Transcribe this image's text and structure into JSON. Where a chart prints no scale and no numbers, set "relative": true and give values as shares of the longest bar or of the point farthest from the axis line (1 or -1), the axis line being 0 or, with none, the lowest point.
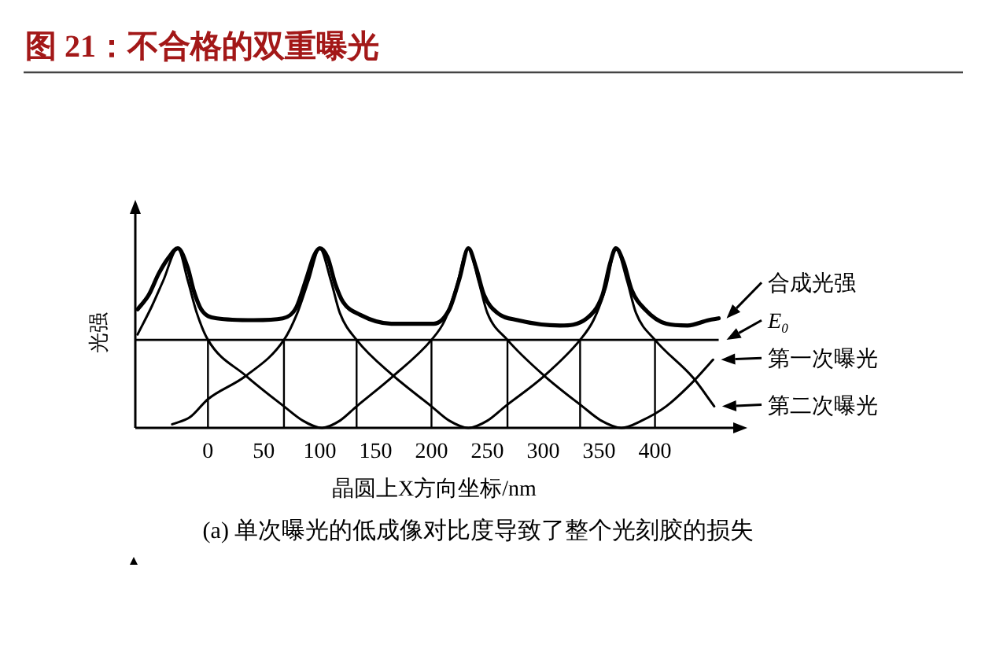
{
  "chart_data": {
    "type": "line",
    "title": "图 21：不合格的双重曝光",
    "xlabel": "晶圆上X方向坐标/nm",
    "ylabel": "光强",
    "annotations": [
      "(a) 单次曝光的低成像对比度导致了整个光刻胶的损失"
    ],
    "relative": true,
    "line_style": "solid",
    "legend": "right",
    "xlim": [
      -65,
      470
    ],
    "xticks": [
      0,
      50,
      100,
      150,
      200,
      250,
      300,
      350,
      400
    ],
    "ref_lines": [
      {
        "axis": "y",
        "value": 0.49,
        "label": "E₀"
      },
      {
        "axis": "x",
        "value": 0
      },
      {
        "axis": "x",
        "value": 68
      },
      {
        "axis": "x",
        "value": 133
      },
      {
        "axis": "x",
        "value": 200
      },
      {
        "axis": "x",
        "value": 268
      },
      {
        "axis": "x",
        "value": 333
      },
      {
        "axis": "x",
        "value": 400
      }
    ],
    "series": [
      {
        "name": "合成光强",
        "color": "#000000",
        "x": [
          -63,
          -53,
          -44,
          -35,
          -27,
          -18,
          -13,
          -6,
          8,
          41,
          67,
          79,
          88,
          95,
          100,
          107,
          114,
          121,
          136,
          164,
          202,
          216,
          225,
          233,
          240,
          247,
          259,
          277,
          315,
          339,
          353,
          360,
          365,
          372,
          379,
          391,
          410,
          429,
          448,
          457
        ],
        "values": [
          0.66,
          0.74,
          0.86,
          0.95,
          1.0,
          0.89,
          0.77,
          0.66,
          0.61,
          0.6,
          0.61,
          0.67,
          0.83,
          0.96,
          1.0,
          0.95,
          0.8,
          0.7,
          0.63,
          0.58,
          0.58,
          0.66,
          0.83,
          1.0,
          0.89,
          0.74,
          0.64,
          0.6,
          0.57,
          0.61,
          0.74,
          0.92,
          1.0,
          0.92,
          0.77,
          0.66,
          0.58,
          0.57,
          0.6,
          0.61
        ]
      },
      {
        "name": "第一次曝光",
        "color": "#000000",
        "x": [
          -63,
          -50,
          -40,
          -27,
          -18,
          -10,
          0,
          34,
          68,
          85,
          102,
          118,
          133,
          166,
          200,
          212,
          222,
          233,
          242,
          250,
          268,
          301,
          335,
          352,
          370,
          388,
          410,
          433,
          452
        ],
        "values": [
          0.52,
          0.68,
          0.82,
          1.0,
          0.82,
          0.64,
          0.49,
          0.29,
          0.12,
          0.04,
          0.0,
          0.04,
          0.12,
          0.29,
          0.49,
          0.6,
          0.78,
          1.0,
          0.82,
          0.64,
          0.49,
          0.29,
          0.12,
          0.04,
          0.0,
          0.04,
          0.12,
          0.25,
          0.38
        ]
      },
      {
        "name": "第二次曝光",
        "color": "#000000",
        "x": [
          -32,
          -16,
          0,
          34,
          68,
          80,
          90,
          100,
          110,
          118,
          133,
          166,
          200,
          216,
          233,
          250,
          266,
          301,
          333,
          345,
          356,
          365,
          375,
          383,
          400,
          434,
          453
        ],
        "values": [
          0.02,
          0.06,
          0.16,
          0.29,
          0.49,
          0.64,
          0.82,
          1.0,
          0.82,
          0.64,
          0.49,
          0.29,
          0.12,
          0.04,
          0.0,
          0.04,
          0.12,
          0.29,
          0.49,
          0.6,
          0.78,
          1.0,
          0.82,
          0.64,
          0.49,
          0.28,
          0.12
        ]
      }
    ]
  }
}
